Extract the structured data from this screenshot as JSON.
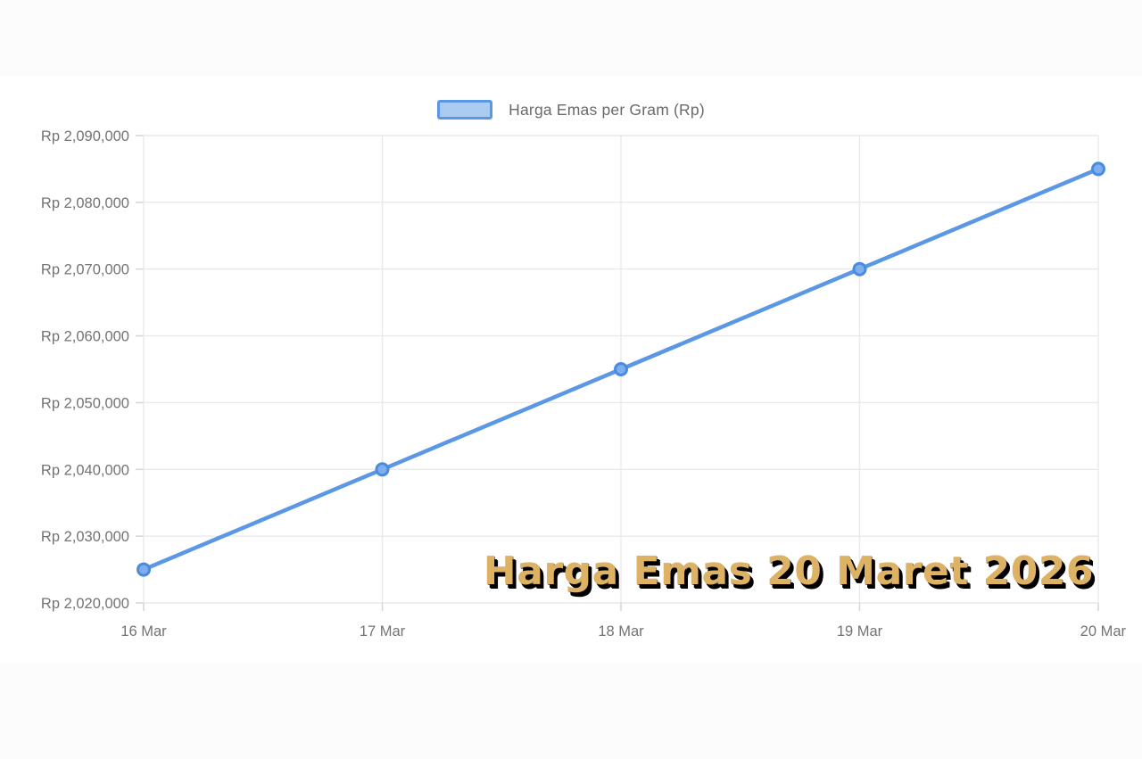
{
  "page": {
    "background_color": "#fcfcfc",
    "panel_color": "#ffffff"
  },
  "legend": {
    "label": "Harga Emas per Gram (Rp)",
    "swatch_fill": "#abcbf1",
    "swatch_border": "#5b97e5"
  },
  "overlay_title": {
    "text": "Harga Emas 20 Maret 2026",
    "color": "#ddb264",
    "shadow_color": "#000000"
  },
  "chart_data": {
    "type": "line",
    "title": "",
    "xlabel": "",
    "ylabel": "",
    "categories": [
      "16 Mar",
      "17 Mar",
      "18 Mar",
      "19 Mar",
      "20 Mar"
    ],
    "series": [
      {
        "name": "Harga Emas per Gram (Rp)",
        "values": [
          2025000,
          2040000,
          2055000,
          2070000,
          2085000
        ],
        "values_formatted": [
          "Rp 2,025,000",
          "Rp 2,040,000",
          "Rp 2,055,000",
          "Rp 2,070,000",
          "Rp 2,085,000"
        ],
        "line_color": "#5b97e5",
        "marker_fill": "#7eafec",
        "marker_stroke": "#4b8bdf"
      }
    ],
    "ylim": [
      2020000,
      2090000
    ],
    "y_ticks": [
      2020000,
      2030000,
      2040000,
      2050000,
      2060000,
      2070000,
      2080000,
      2090000
    ],
    "y_tick_labels": [
      "Rp 2,020,000",
      "Rp 2,030,000",
      "Rp 2,040,000",
      "Rp 2,050,000",
      "Rp 2,060,000",
      "Rp 2,070,000",
      "Rp 2,080,000",
      "Rp 2,090,000"
    ],
    "grid": true,
    "grid_color": "#e9e9e9",
    "tick_mark_color": "#d7d7d7",
    "tick_label_color": "#737373",
    "legend_position": "top"
  }
}
